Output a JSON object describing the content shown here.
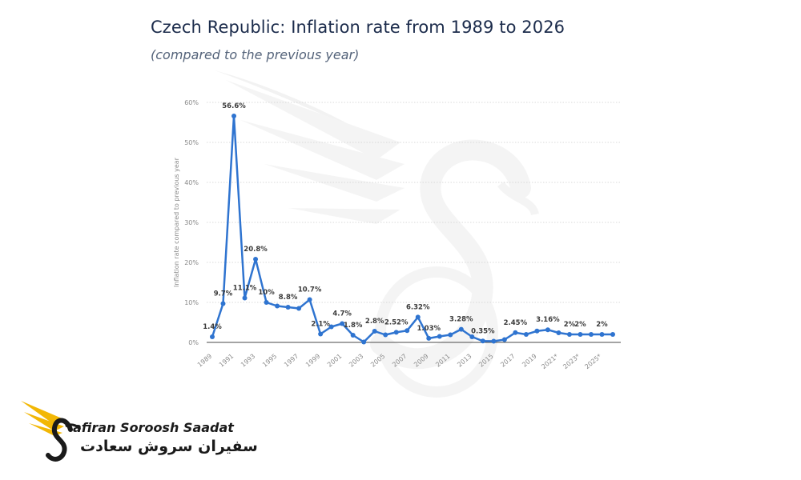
{
  "header": {
    "title": "Czech Republic: Inflation rate from 1989 to 2026",
    "subtitle": "(compared to the previous year)"
  },
  "colors": {
    "line": "#2f74d0",
    "grid": "#d9d9d9",
    "title": "#1b2b4b",
    "logo_gold": "#f2b705"
  },
  "logo": {
    "icon": "swan-bird-icon",
    "name_en": "afiran Soroosh Saadat",
    "name_fa": "سفیران سروش سعادت"
  },
  "watermark": {
    "icon": "swan-watermark-icon"
  },
  "chart_data": {
    "type": "line",
    "title": "Czech Republic: Inflation rate from 1989 to 2026",
    "subtitle": "(compared to the previous year)",
    "ylabel": "Inflation rate compared to previous year",
    "xlabel": "",
    "ylim": [
      0,
      60
    ],
    "yticks": [
      "0%",
      "10%",
      "20%",
      "30%",
      "40%",
      "50%",
      "60%"
    ],
    "grid": true,
    "x": [
      "1989",
      "1990",
      "1991",
      "1992",
      "1993",
      "1994",
      "1995",
      "1996",
      "1997",
      "1998",
      "1999",
      "2000",
      "2001",
      "2002",
      "2003",
      "2004",
      "2005",
      "2006",
      "2007",
      "2008",
      "2009",
      "2010",
      "2011",
      "2012",
      "2013",
      "2014",
      "2015",
      "2016",
      "2017",
      "2018",
      "2019",
      "2020",
      "2021*",
      "2022*",
      "2023*",
      "2024*",
      "2025*",
      "2026*"
    ],
    "xtick_labels": [
      "1989",
      "1991",
      "1993",
      "1995",
      "1997",
      "1999",
      "2001",
      "2003",
      "2005",
      "2007",
      "2009",
      "2011",
      "2013",
      "2015",
      "2017",
      "2019",
      "2021*",
      "2023*",
      "2025*"
    ],
    "series": [
      {
        "values": [
          1.4,
          9.7,
          56.6,
          11.1,
          20.8,
          10,
          9.1,
          8.8,
          8.5,
          10.7,
          2.1,
          3.9,
          4.7,
          1.8,
          0.1,
          2.8,
          1.9,
          2.52,
          2.95,
          6.32,
          1.03,
          1.5,
          1.9,
          3.28,
          1.4,
          0.35,
          0.3,
          0.7,
          2.45,
          2.0,
          2.85,
          3.16,
          2.4,
          2,
          2,
          2,
          2,
          2
        ],
        "labels": [
          "1.4%",
          "9.7%",
          "56.6%",
          "11.1%",
          "20.8%",
          "10%",
          "",
          "8.8%",
          "",
          "10.7%",
          "2.1%",
          "",
          "4.7%",
          "1.8%",
          "",
          "2.8%",
          "",
          "2.52%",
          "",
          "6.32%",
          "1.03%",
          "",
          "",
          "3.28%",
          "",
          "0.35%",
          "",
          "",
          "2.45%",
          "",
          "",
          "3.16%",
          "",
          "2%",
          "2%",
          "",
          "2%",
          ""
        ]
      }
    ]
  }
}
